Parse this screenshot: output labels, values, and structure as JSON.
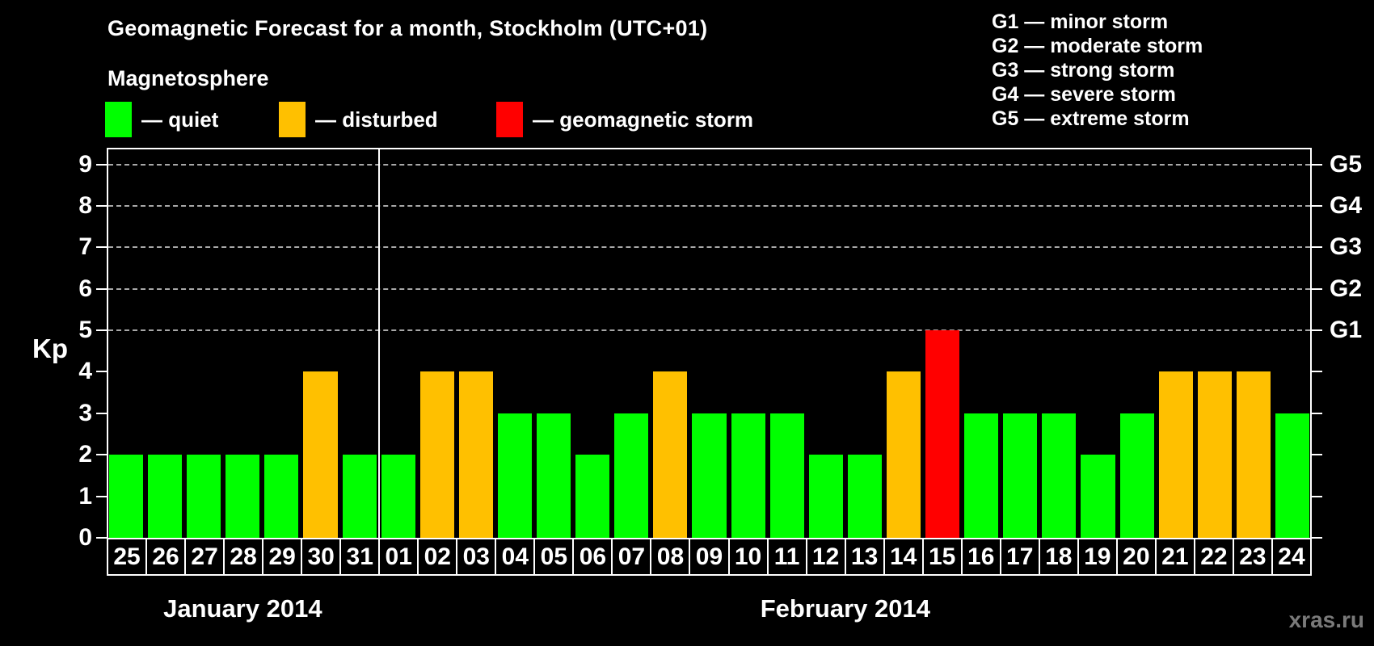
{
  "watermark": "xras.ru",
  "colors": {
    "background": "#000000",
    "axis": "#ffffff",
    "grid": "#a8a8a8",
    "quiet": "#00ff00",
    "disturbed": "#ffc000",
    "storm": "#ff0000",
    "watermark": "#7a7a7a"
  },
  "legend": {
    "heading": "Magnetosphere",
    "items": [
      {
        "key": "quiet",
        "label": "— quiet"
      },
      {
        "key": "disturbed",
        "label": "— disturbed"
      },
      {
        "key": "storm",
        "label": "— geomagnetic storm"
      }
    ]
  },
  "g_legend": {
    "items": [
      "G1 — minor storm",
      "G2 — moderate storm",
      "G3 — strong storm",
      "G4 — severe storm",
      "G5 — extreme storm"
    ]
  },
  "chart_data": {
    "type": "bar",
    "title": "Geomagnetic Forecast for a month, Stockholm (UTC+01)",
    "ylabel": "Kp",
    "xlabel": "",
    "ylim": [
      0,
      9.4
    ],
    "y_ticks": [
      0,
      1,
      2,
      3,
      4,
      5,
      6,
      7,
      8,
      9
    ],
    "grid_levels": [
      5,
      6,
      7,
      8,
      9
    ],
    "grid_on": true,
    "right_axis_labels": [
      {
        "value": 5,
        "label": "G1"
      },
      {
        "value": 6,
        "label": "G2"
      },
      {
        "value": 7,
        "label": "G3"
      },
      {
        "value": 8,
        "label": "G4"
      },
      {
        "value": 9,
        "label": "G5"
      }
    ],
    "months": [
      {
        "label": "January 2014",
        "days": [
          {
            "day": "25",
            "kp": 2,
            "status": "quiet"
          },
          {
            "day": "26",
            "kp": 2,
            "status": "quiet"
          },
          {
            "day": "27",
            "kp": 2,
            "status": "quiet"
          },
          {
            "day": "28",
            "kp": 2,
            "status": "quiet"
          },
          {
            "day": "29",
            "kp": 2,
            "status": "quiet"
          },
          {
            "day": "30",
            "kp": 4,
            "status": "disturbed"
          },
          {
            "day": "31",
            "kp": 2,
            "status": "quiet"
          }
        ]
      },
      {
        "label": "February 2014",
        "days": [
          {
            "day": "01",
            "kp": 2,
            "status": "quiet"
          },
          {
            "day": "02",
            "kp": 4,
            "status": "disturbed"
          },
          {
            "day": "03",
            "kp": 4,
            "status": "disturbed"
          },
          {
            "day": "04",
            "kp": 3,
            "status": "quiet"
          },
          {
            "day": "05",
            "kp": 3,
            "status": "quiet"
          },
          {
            "day": "06",
            "kp": 2,
            "status": "quiet"
          },
          {
            "day": "07",
            "kp": 3,
            "status": "quiet"
          },
          {
            "day": "08",
            "kp": 4,
            "status": "disturbed"
          },
          {
            "day": "09",
            "kp": 3,
            "status": "quiet"
          },
          {
            "day": "10",
            "kp": 3,
            "status": "quiet"
          },
          {
            "day": "11",
            "kp": 3,
            "status": "quiet"
          },
          {
            "day": "12",
            "kp": 2,
            "status": "quiet"
          },
          {
            "day": "13",
            "kp": 2,
            "status": "quiet"
          },
          {
            "day": "14",
            "kp": 4,
            "status": "disturbed"
          },
          {
            "day": "15",
            "kp": 5,
            "status": "storm"
          },
          {
            "day": "16",
            "kp": 3,
            "status": "quiet"
          },
          {
            "day": "17",
            "kp": 3,
            "status": "quiet"
          },
          {
            "day": "18",
            "kp": 3,
            "status": "quiet"
          },
          {
            "day": "19",
            "kp": 2,
            "status": "quiet"
          },
          {
            "day": "20",
            "kp": 3,
            "status": "quiet"
          },
          {
            "day": "21",
            "kp": 4,
            "status": "disturbed"
          },
          {
            "day": "22",
            "kp": 4,
            "status": "disturbed"
          },
          {
            "day": "23",
            "kp": 4,
            "status": "disturbed"
          },
          {
            "day": "24",
            "kp": 3,
            "status": "quiet"
          }
        ]
      }
    ]
  }
}
